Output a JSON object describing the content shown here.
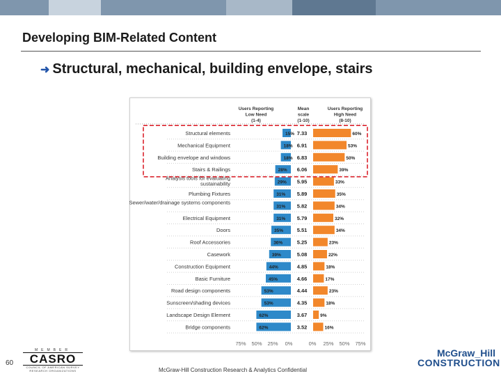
{
  "slide": {
    "title": "Developing BIM-Related Content",
    "bullet": "Structural, mechanical, building envelope, stairs",
    "page_number": "60",
    "footer": "McGraw-Hill Construction Research & Analytics Confidential",
    "logo_left": {
      "top": "MEMBER",
      "main": "CASRO",
      "sub": "COUNCIL OF AMERICAN SURVEY RESEARCH ORGANIZATIONS"
    },
    "logo_right": {
      "line1": "McGraw_Hill",
      "line2": "CONSTRUCTION"
    }
  },
  "colors": {
    "band": [
      "#7f96ad",
      "#c8d3de",
      "#7f96ad",
      "#a8b8c8",
      "#5f7891",
      "#7f96ad"
    ],
    "blue_bar": "#2e89c9",
    "orange_bar": "#f2872b",
    "highlight_box": "#d8141e"
  },
  "chart_data": {
    "type": "bar",
    "headers": {
      "low": "Users Reporting Low Need (1-4)",
      "mean": "Mean scale (1-10)",
      "high": "Users Reporting High Need (8-10)"
    },
    "categories": [
      "Structural elements",
      "Mechanical Equipment",
      "Building envelope and windows",
      "Stairs & Railings",
      "Analysis tools for evaluating sustainability",
      "Plumbing Fixtures",
      "Sewer/water/drainage systems components",
      "Electrical Equipment",
      "Doors",
      "Roof Accessories",
      "Casework",
      "Construction Equipment",
      "Basic Furniture",
      "Road design components",
      "Sunscreen/shading devices",
      "Landscape Design Element",
      "Bridge components"
    ],
    "series": [
      {
        "name": "Users Reporting Low Need (1-4)",
        "values": [
          15,
          18,
          18,
          28,
          29,
          31,
          31,
          31,
          35,
          36,
          39,
          44,
          45,
          53,
          53,
          62,
          62
        ]
      },
      {
        "name": "Mean scale (1-10)",
        "values": [
          7.33,
          6.91,
          6.83,
          6.06,
          5.95,
          5.89,
          5.82,
          5.79,
          5.51,
          5.25,
          5.08,
          4.85,
          4.66,
          4.44,
          4.35,
          3.67,
          3.52
        ]
      },
      {
        "name": "Users Reporting High Need (8-10)",
        "values": [
          60,
          53,
          50,
          39,
          33,
          35,
          34,
          32,
          34,
          23,
          22,
          18,
          17,
          23,
          18,
          9,
          16
        ]
      }
    ],
    "value_labels_low": [
      "15%",
      "18%",
      "18%",
      "28%",
      "29%",
      "31%",
      "31%",
      "31%",
      "35%",
      "36%",
      "39%",
      "44%",
      "45%",
      "53%",
      "53%",
      "62%",
      "62%"
    ],
    "value_labels_mean": [
      "7.33",
      "6.91",
      "6.83",
      "6.06",
      "5.95",
      "5.89",
      "5.82",
      "5.79",
      "5.51",
      "5.25",
      "5.08",
      "4.85",
      "4.66",
      "4.44",
      "4.35",
      "3.67",
      "3.52"
    ],
    "value_labels_high": [
      "60%",
      "53%",
      "50%",
      "39%",
      "33%",
      "35%",
      "34%",
      "32%",
      "34%",
      "23%",
      "22%",
      "18%",
      "17%",
      "23%",
      "18%",
      "9%",
      "16%"
    ],
    "axis_left_ticks": [
      "75%",
      "50%",
      "25%",
      "0%"
    ],
    "axis_right_ticks": [
      "0%",
      "25%",
      "50%",
      "75%"
    ],
    "axis_range_percent": [
      0,
      75
    ],
    "highlighted_categories": [
      "Structural elements",
      "Mechanical Equipment",
      "Building envelope and windows",
      "Stairs & Railings"
    ]
  }
}
